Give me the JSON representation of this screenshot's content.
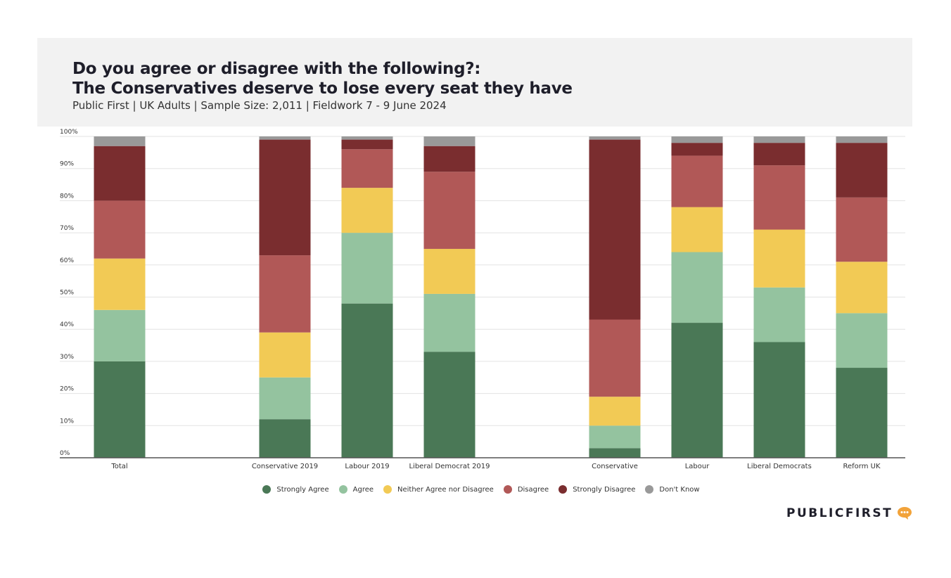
{
  "header": {
    "title_line1": "Do you agree or disagree with the following?:",
    "title_line2": "The Conservatives deserve to lose every seat they have",
    "subtitle": "Public First | UK Adults | Sample Size: 2,011 | Fieldwork 7 - 9 June 2024"
  },
  "logo": {
    "text": "PUBLICFIRST",
    "icon": "speech-bubble-icon"
  },
  "colors": {
    "Strongly Agree": "#4a7856",
    "Agree": "#94c39f",
    "Neither Agree nor Disagree": "#f2ca55",
    "Disagree": "#b15857",
    "Strongly Disagree": "#7a2d2f",
    "Don't Know": "#999999"
  },
  "chart_data": {
    "type": "bar",
    "stacked": true,
    "categories": [
      "Total",
      "Conservative 2019",
      "Labour 2019",
      "Liberal Democrat 2019",
      "Conservative",
      "Labour",
      "Liberal Democrats",
      "Reform UK"
    ],
    "series": [
      {
        "name": "Strongly Agree",
        "values": [
          30,
          12,
          48,
          33,
          3,
          42,
          36,
          28
        ]
      },
      {
        "name": "Agree",
        "values": [
          16,
          13,
          22,
          18,
          7,
          22,
          17,
          17
        ]
      },
      {
        "name": "Neither Agree nor Disagree",
        "values": [
          16,
          14,
          14,
          14,
          9,
          14,
          18,
          16
        ]
      },
      {
        "name": "Disagree",
        "values": [
          18,
          24,
          12,
          24,
          24,
          16,
          20,
          20
        ]
      },
      {
        "name": "Strongly Disagree",
        "values": [
          17,
          36,
          3,
          8,
          56,
          4,
          7,
          17
        ]
      },
      {
        "name": "Don't Know",
        "values": [
          3,
          1,
          1,
          3,
          1,
          2,
          2,
          2
        ]
      }
    ],
    "yticks": [
      "0%",
      "10%",
      "20%",
      "30%",
      "40%",
      "50%",
      "60%",
      "70%",
      "80%",
      "90%",
      "100%"
    ],
    "ylim": [
      0,
      100
    ],
    "grid": true,
    "legend": "bottom"
  }
}
